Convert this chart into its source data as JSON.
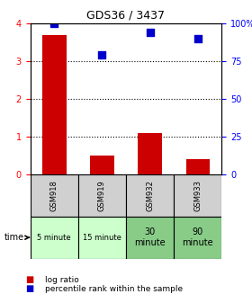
{
  "title": "GDS36 / 3437",
  "samples": [
    "GSM918",
    "GSM919",
    "GSM932",
    "GSM933"
  ],
  "time_labels": [
    "5 minute",
    "15 minute",
    "30\nminute",
    "90\nminute"
  ],
  "log_ratio": [
    3.7,
    0.5,
    1.1,
    0.4
  ],
  "percentile_rank": [
    100,
    79,
    94,
    90
  ],
  "bar_color": "#cc0000",
  "dot_color": "#0000cc",
  "ylim_left": [
    0,
    4
  ],
  "ylim_right": [
    0,
    100
  ],
  "yticks_left": [
    0,
    1,
    2,
    3,
    4
  ],
  "ytick_labels_right": [
    "0",
    "25",
    "50",
    "75",
    "100%"
  ],
  "yticks_right": [
    0,
    25,
    50,
    75,
    100
  ],
  "grid_color": "black",
  "bar_width": 0.5,
  "sample_bg_color": "#d0d0d0",
  "time_bg_light": "#ccffcc",
  "time_bg_dark": "#88cc88",
  "legend_label_bar": "log ratio",
  "legend_label_dot": "percentile rank within the sample",
  "x_positions": [
    1,
    2,
    3,
    4
  ]
}
